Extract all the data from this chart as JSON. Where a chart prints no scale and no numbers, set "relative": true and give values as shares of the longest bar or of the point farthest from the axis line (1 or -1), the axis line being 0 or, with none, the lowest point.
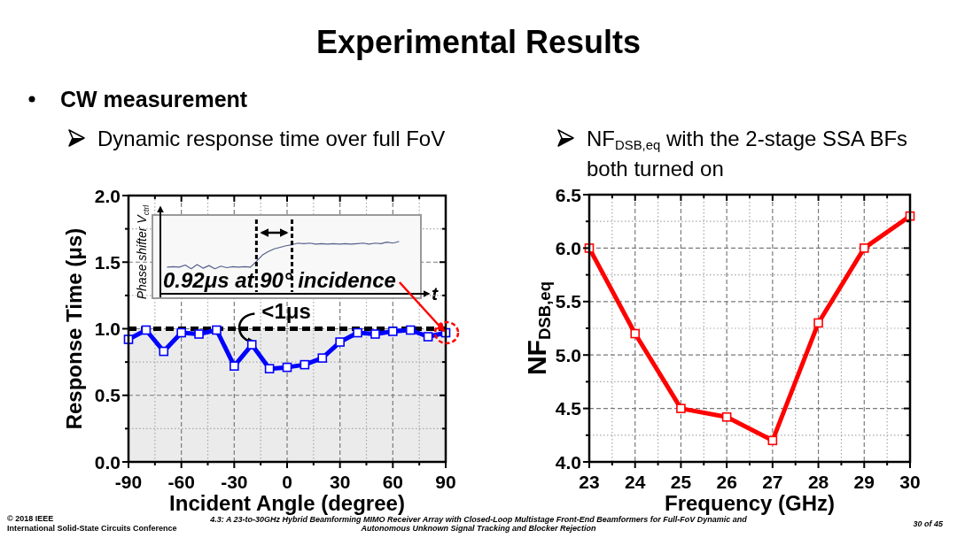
{
  "chart_data": [
    {
      "type": "other",
      "title": "Experimental Results",
      "subtitle": "CW measurement",
      "annotations": [
        "© 2018 IEEE",
        "International Solid-State Circuits Conference",
        "4.3: A 23-to-30GHz Hybrid Beamforming MIMO Receiver Array with Closed-Loop Multistage Front-End Beamformers for Full-FoV Dynamic and Autonomous Unknown Signal Tracking and Blocker Rejection",
        "30 of 45"
      ]
    },
    {
      "type": "line",
      "title": "Dynamic response time over full FoV",
      "xlabel": "Incident Angle (degree)",
      "ylabel": "Response Time (μs)",
      "x": [
        -90,
        -80,
        -70,
        -60,
        -50,
        -40,
        -30,
        -20,
        -10,
        0,
        10,
        20,
        30,
        40,
        50,
        60,
        70,
        80,
        90
      ],
      "series": [
        {
          "color": "#0000ff",
          "values": [
            0.92,
            0.99,
            0.83,
            0.97,
            0.96,
            0.99,
            0.72,
            0.88,
            0.7,
            0.71,
            0.73,
            0.78,
            0.9,
            0.97,
            0.96,
            0.98,
            0.99,
            0.94,
            0.97
          ]
        }
      ],
      "marker": "square",
      "xlim": [
        -90,
        90
      ],
      "xticks": [
        -90,
        {
          "value": -75,
          "label": null
        },
        -60,
        {
          "value": -45,
          "label": null
        },
        -30,
        {
          "value": -15,
          "label": null
        },
        0,
        {
          "value": 15,
          "label": null
        },
        30,
        {
          "value": 45,
          "label": null
        },
        60,
        {
          "value": 75,
          "label": null
        },
        90
      ],
      "ylim": [
        0,
        2
      ],
      "yticks": [
        {
          "value": 0,
          "label": "0.0"
        },
        {
          "value": 0.25,
          "label": null
        },
        0.5,
        {
          "value": 0.75,
          "label": null
        },
        {
          "value": 1,
          "label": "1.0"
        },
        {
          "value": 1.25,
          "label": null
        },
        1.5,
        {
          "value": 1.75,
          "label": null
        },
        {
          "value": 2,
          "label": "2.0"
        }
      ],
      "grid": true,
      "ref_lines": [
        {
          "axis": "y",
          "value": 1,
          "label": "<1μs",
          "color": "#000000",
          "line_style": "dashed"
        }
      ],
      "bands": [
        {
          "axis": "y",
          "from": 0,
          "to": 1,
          "color": "#ebebeb"
        }
      ],
      "annotations": [
        {
          "text": "0.92μs at 90° incidence",
          "x": 90,
          "y": 0.97
        }
      ]
    },
    {
      "type": "line",
      "relative": true,
      "xlabel": "t",
      "ylabel": "Phase shifter V$_{ctrl}$",
      "categories": [
        null,
        null,
        null,
        null,
        null,
        null,
        null,
        null,
        null,
        null,
        null,
        null,
        null,
        null,
        null,
        null,
        null,
        null,
        null,
        null,
        null,
        null,
        null,
        null,
        null,
        null,
        null,
        null,
        null,
        null,
        null,
        null,
        null,
        null,
        null,
        null,
        null,
        null,
        null,
        null
      ],
      "series": [
        {
          "color": "#56608c",
          "values": [
            0.51,
            0.52,
            0.51,
            0.55,
            0.48,
            0.56,
            0.49,
            0.54,
            0.48,
            0.53,
            0.5,
            0.52,
            0.51,
            0.52,
            0.51,
            0.62,
            0.74,
            0.81,
            0.86,
            0.89,
            0.92,
            0.94,
            0.97,
            0.96,
            0.97,
            0.95,
            0.96,
            0.95,
            0.96,
            0.95,
            0.96,
            0.95,
            0.96,
            0.97,
            0.95,
            0.97,
            0.96,
            0.99,
            0.97,
            1.0
          ]
        }
      ]
    },
    {
      "type": "line",
      "title": "NF$_{DSB,eq}$ with the 2-stage SSA BFs both turned on",
      "xlabel": "Frequency (GHz)",
      "ylabel": "NF$_{DSB,eq}$",
      "x": [
        23,
        24,
        25,
        26,
        27,
        28,
        29,
        30
      ],
      "series": [
        {
          "color": "#ff0000",
          "values": [
            6.0,
            5.2,
            4.5,
            4.42,
            4.2,
            5.3,
            6.0,
            6.3
          ]
        }
      ],
      "marker": "square",
      "xlim": [
        23,
        30
      ],
      "xticks": [
        23,
        {
          "value": 23.5,
          "label": null
        },
        24,
        {
          "value": 24.5,
          "label": null
        },
        25,
        {
          "value": 25.5,
          "label": null
        },
        26,
        {
          "value": 26.5,
          "label": null
        },
        27,
        {
          "value": 27.5,
          "label": null
        },
        28,
        {
          "value": 28.5,
          "label": null
        },
        29,
        {
          "value": 29.5,
          "label": null
        },
        30
      ],
      "ylim": [
        4,
        6.5
      ],
      "yticks": [
        {
          "value": 4,
          "label": "4.0"
        },
        {
          "value": 4.25,
          "label": null
        },
        4.5,
        {
          "value": 4.75,
          "label": null
        },
        {
          "value": 5,
          "label": "5.0"
        },
        {
          "value": 5.25,
          "label": null
        },
        5.5,
        {
          "value": 5.75,
          "label": null
        },
        {
          "value": 6,
          "label": "6.0"
        },
        {
          "value": 6.25,
          "label": null
        },
        6.5
      ],
      "grid": true
    }
  ]
}
